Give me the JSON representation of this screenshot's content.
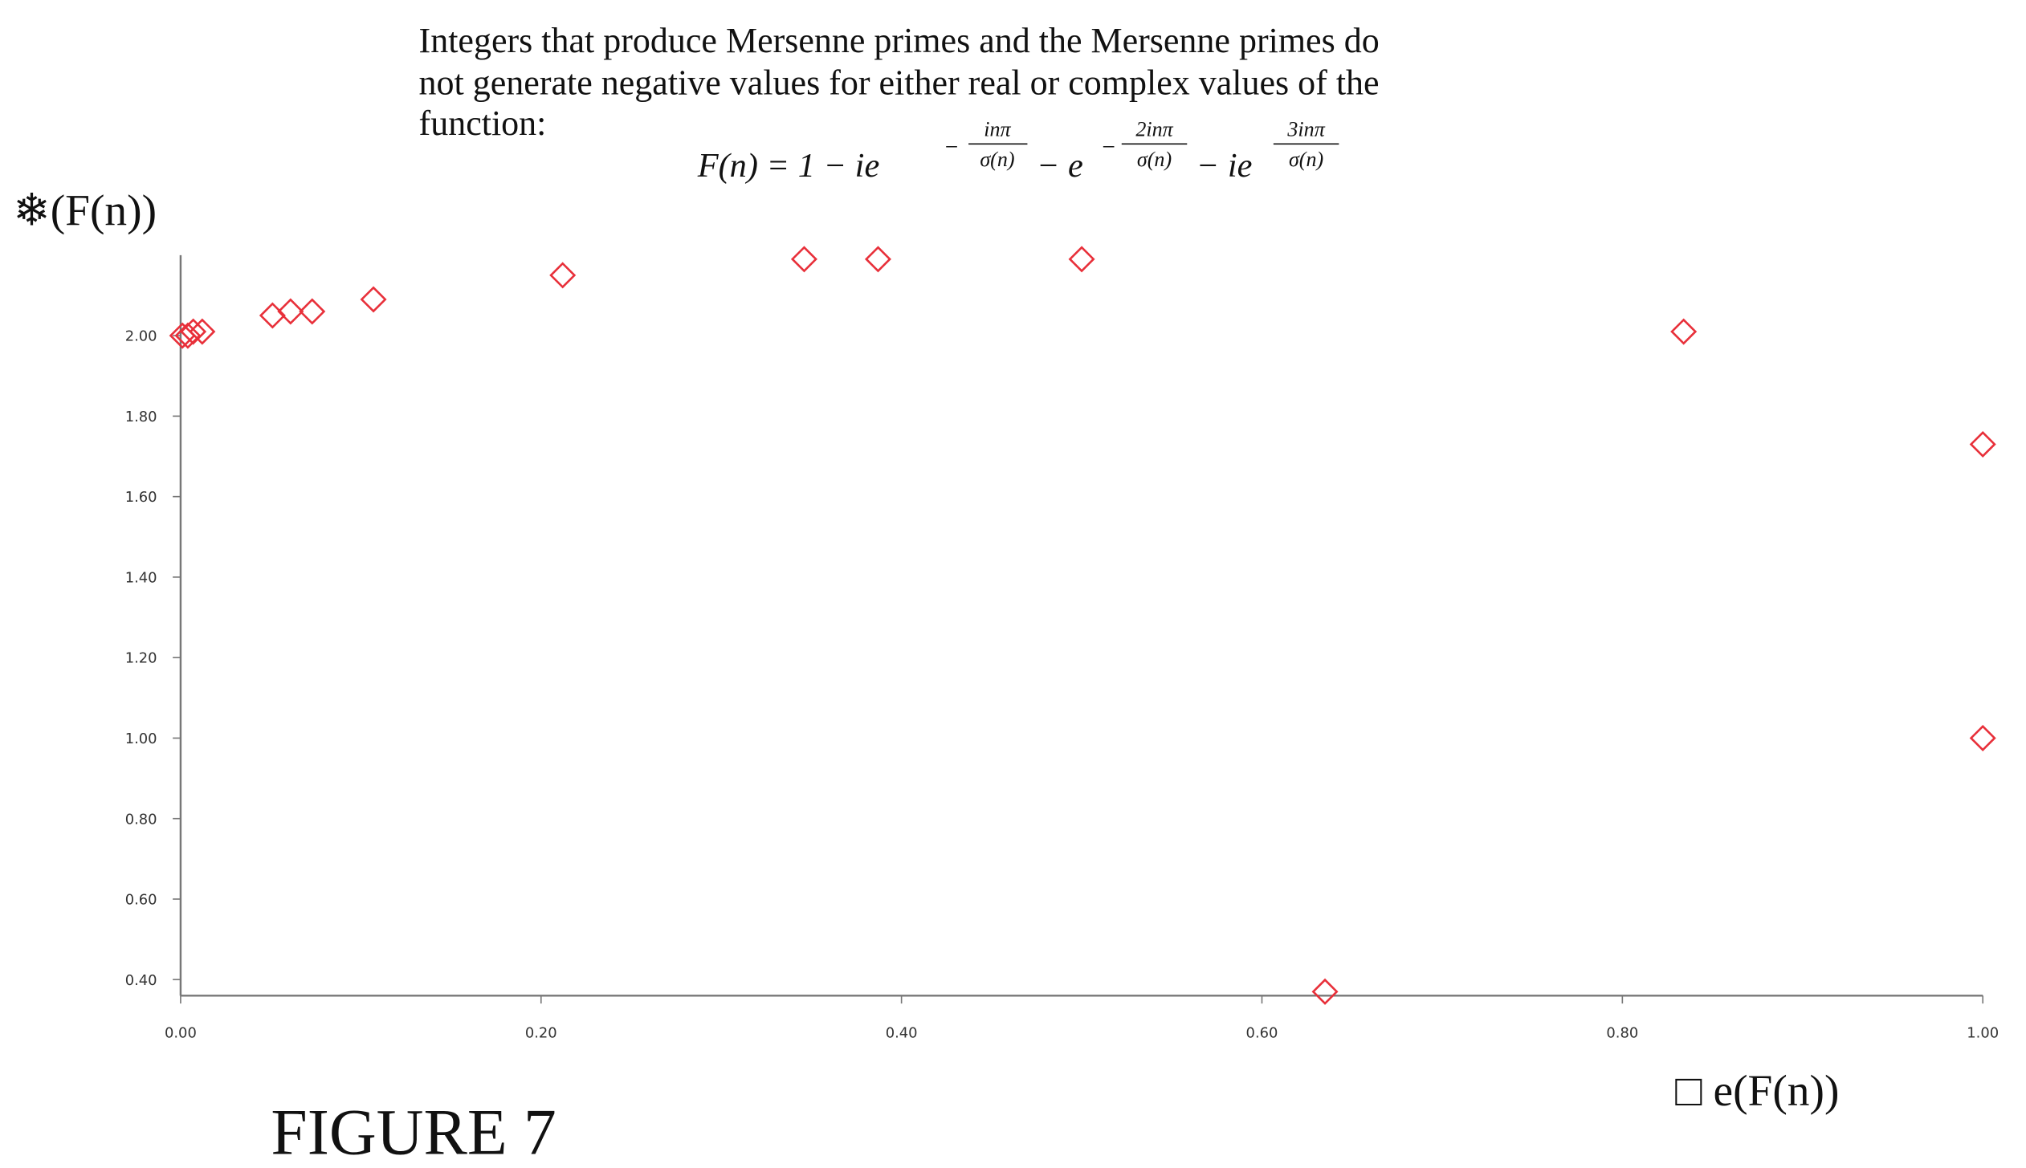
{
  "chart_data": {
    "type": "scatter",
    "title_lines": [
      "Integers that produce Mersenne primes and the Mersenne primes do",
      "not generate negative values for either real or complex values of the",
      "function:"
    ],
    "formula": {
      "parts": [
        "F(n) = 1 − ie",
        "− e",
        "− ie"
      ],
      "exponents": [
        {
          "sign": "−",
          "numerator": "inπ",
          "denominator": "σ(n)"
        },
        {
          "sign": "−",
          "numerator": "2inπ",
          "denominator": "σ(n)"
        },
        {
          "numerator": "3inπ",
          "denominator": "σ(n)"
        }
      ]
    },
    "y_label": "❄(F(n))",
    "x_label": "□ e(F(n))",
    "caption": "FIGURE 7",
    "color": "#e8303a",
    "x": [
      0.001,
      0.004,
      0.007,
      0.012,
      0.051,
      0.061,
      0.073,
      0.107,
      0.212,
      0.346,
      0.387,
      0.5,
      0.834,
      1.0,
      1.0,
      0.635
    ],
    "values": [
      2.0,
      2.0,
      2.01,
      2.01,
      2.05,
      2.06,
      2.06,
      2.09,
      2.15,
      2.19,
      2.19,
      2.19,
      2.01,
      1.73,
      1.0,
      0.37
    ],
    "xlim": [
      0,
      1
    ],
    "ylim": [
      0.36,
      2.2
    ],
    "xticks": [
      {
        "value": 0,
        "label": "0.00"
      },
      {
        "value": 0.2,
        "label": "0.20"
      },
      {
        "value": 0.4,
        "label": "0.40"
      },
      {
        "value": 0.6,
        "label": "0.60"
      },
      {
        "value": 0.8,
        "label": "0.80"
      },
      {
        "value": 1,
        "label": "1.00"
      }
    ],
    "yticks": [
      {
        "value": 0.4,
        "label": "0.40"
      },
      {
        "value": 0.6,
        "label": "0.60"
      },
      {
        "value": 0.8,
        "label": "0.80"
      },
      {
        "value": 1.0,
        "label": "1.00"
      },
      {
        "value": 1.2,
        "label": "1.20"
      },
      {
        "value": 1.4,
        "label": "1.40"
      },
      {
        "value": 1.6,
        "label": "1.60"
      },
      {
        "value": 1.8,
        "label": "1.80"
      },
      {
        "value": 2.0,
        "label": "2.00"
      }
    ],
    "grid": false
  }
}
